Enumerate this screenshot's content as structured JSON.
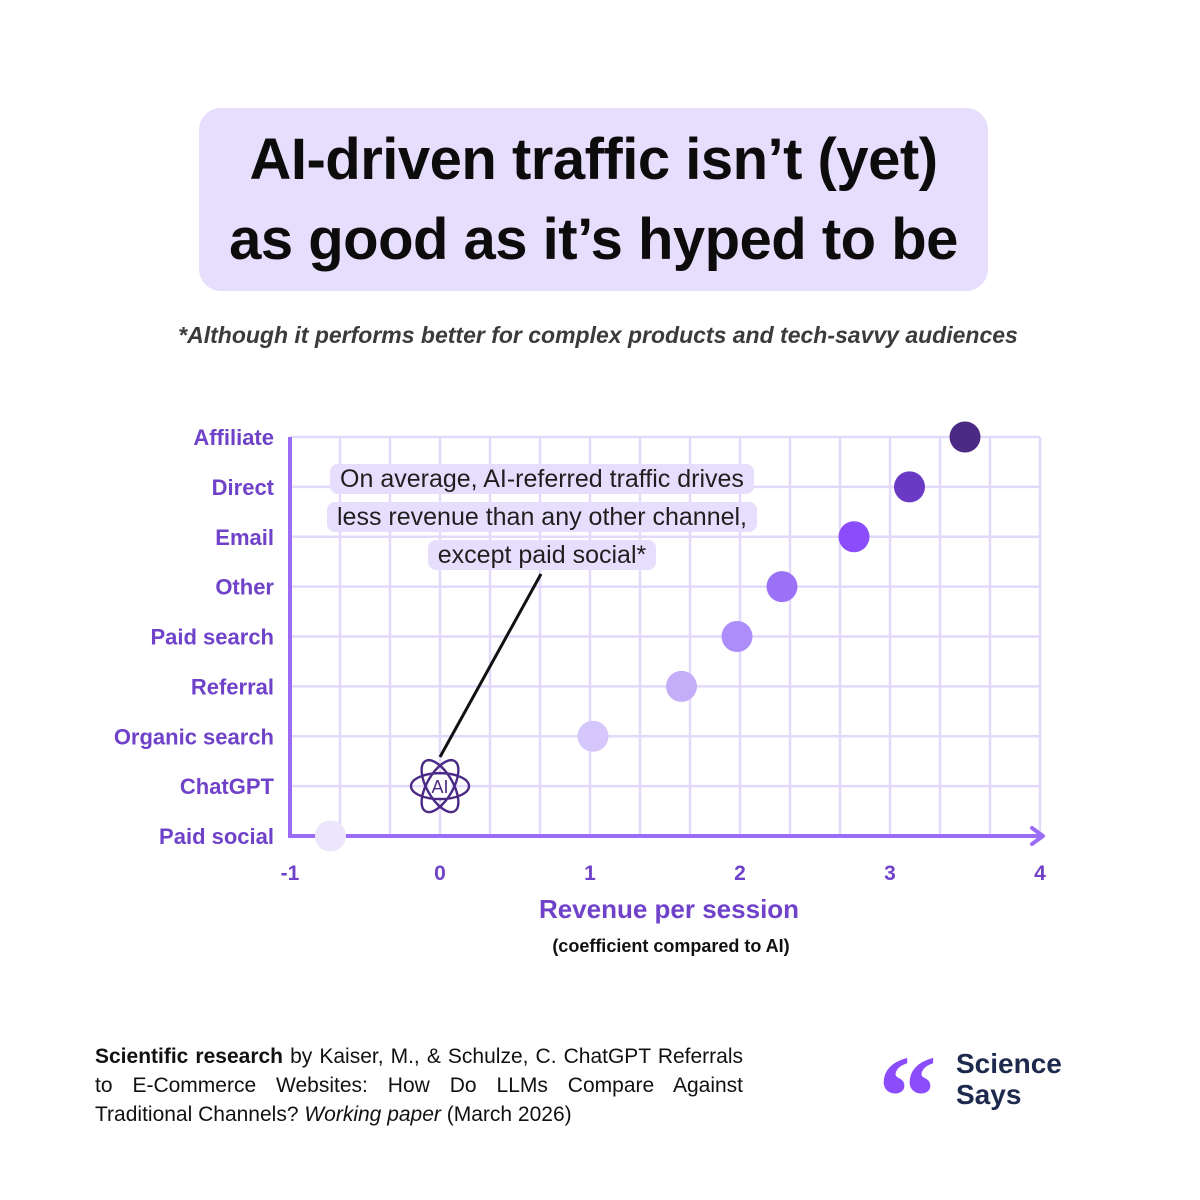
{
  "title": {
    "line1": "AI-driven traffic isn’t (yet)",
    "line2": "as good as it’s hyped to be"
  },
  "subtitle": "*Although it performs better for complex products and tech-savvy audiences",
  "callout": {
    "line1": "On average, AI-referred traffic drives",
    "line2": "less revenue than any other channel,",
    "line3": "except paid social*"
  },
  "chart_data": {
    "type": "scatter",
    "xlabel": "Revenue per session",
    "xlabel_note": "(coefficient compared to AI)",
    "ylabel": "",
    "xlim": [
      -1,
      4
    ],
    "x_ticks": [
      "-1",
      "0",
      "1",
      "2",
      "3",
      "4"
    ],
    "categories": [
      "Paid social",
      "ChatGPT",
      "Organic search",
      "Referral",
      "Paid search",
      "Other",
      "Email",
      "Direct",
      "Affiliate"
    ],
    "points": [
      {
        "category": "Paid social",
        "x": -0.73,
        "color": "#ece6fd"
      },
      {
        "category": "ChatGPT",
        "x": 0,
        "icon": "ai-icon",
        "label": "AI"
      },
      {
        "category": "Organic search",
        "x": 1.02,
        "color": "#d5c6fb"
      },
      {
        "category": "Referral",
        "x": 1.61,
        "color": "#c4aefa"
      },
      {
        "category": "Paid search",
        "x": 1.98,
        "color": "#ad8df9"
      },
      {
        "category": "Other",
        "x": 2.28,
        "color": "#9b72f6"
      },
      {
        "category": "Email",
        "x": 2.76,
        "color": "#8b4dfc"
      },
      {
        "category": "Direct",
        "x": 3.13,
        "color": "#6a3ac4"
      },
      {
        "category": "Affiliate",
        "x": 3.5,
        "color": "#4b2a85"
      }
    ],
    "grid": true,
    "axis_color": "#9b6cf5",
    "label_color": "#6f42c9"
  },
  "footer": {
    "bold": "Scientific research",
    "text1": " by Kaiser, M., & Schulze, C. ChatGPT Referrals to E-Commerce Websites: How Do LLMs Compare Against Traditional Channels? ",
    "italic": "Working paper",
    "text2": " (March 2026)"
  },
  "logo": {
    "line1": "Science",
    "line2": "Says",
    "color": "#8b4dfc",
    "text_color": "#1e2a4d"
  }
}
